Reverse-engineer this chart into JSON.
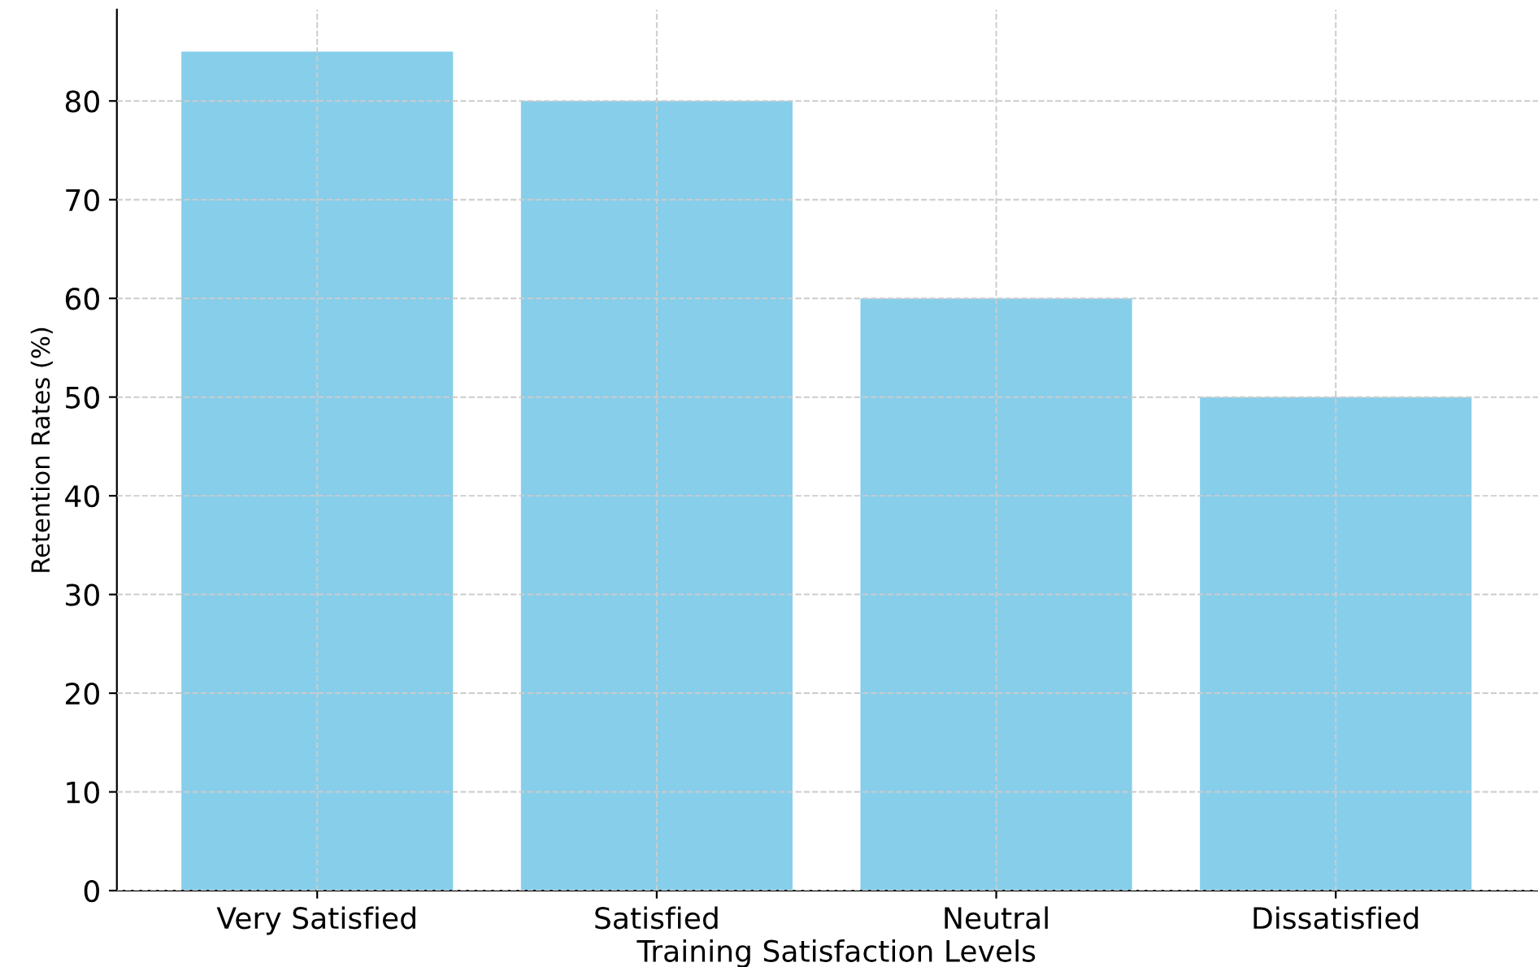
{
  "chart_data": {
    "type": "bar",
    "xlabel": "Training Satisfaction Levels",
    "ylabel": "Retention Rates (%)",
    "categories": [
      "Very Satisfied",
      "Satisfied",
      "Neutral",
      "Dissatisfied"
    ],
    "values": [
      85,
      80,
      60,
      50
    ],
    "color": "#87ceeb",
    "ylim": [
      0,
      89.25
    ],
    "yticks": [
      0,
      10,
      20,
      30,
      40,
      50,
      60,
      70,
      80
    ],
    "grid": true
  }
}
